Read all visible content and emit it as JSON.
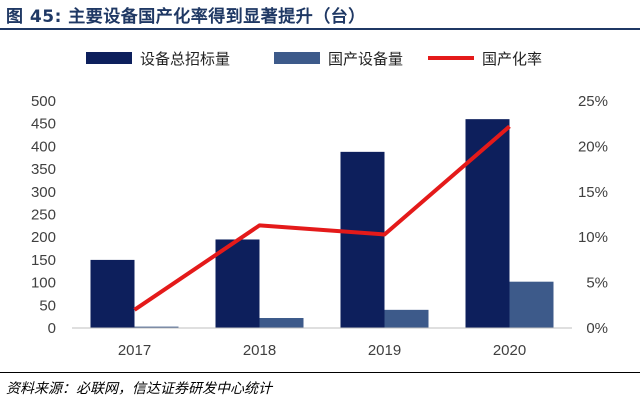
{
  "header": {
    "title": "图 45:  主要设备国产化率得到显著提升（台）"
  },
  "footer": {
    "source": "资料来源：必联网，信达证券研发中心统计"
  },
  "colors": {
    "series1": "#0d1f5c",
    "series2": "#3d5a8a",
    "series3": "#e41a1a",
    "title": "#1f3864"
  },
  "chart_data": {
    "type": "bar",
    "categories": [
      "2017",
      "2018",
      "2019",
      "2020"
    ],
    "series": [
      {
        "name": "设备总招标量",
        "type": "bar",
        "axis": "left",
        "values": [
          150,
          195,
          388,
          460
        ]
      },
      {
        "name": "国产设备量",
        "type": "bar",
        "axis": "left",
        "values": [
          3,
          22,
          40,
          102
        ]
      },
      {
        "name": "国产化率",
        "type": "line",
        "axis": "right",
        "values": [
          0.02,
          0.113,
          0.103,
          0.222
        ]
      }
    ],
    "ylim": [
      0,
      500
    ],
    "yticks": [
      "0",
      "50",
      "100",
      "150",
      "200",
      "250",
      "300",
      "350",
      "400",
      "450",
      "500"
    ],
    "y2lim": [
      0,
      0.25
    ],
    "y2ticks": [
      "0%",
      "5%",
      "10%",
      "15%",
      "20%",
      "25%"
    ],
    "legend": "top",
    "grid": false
  }
}
